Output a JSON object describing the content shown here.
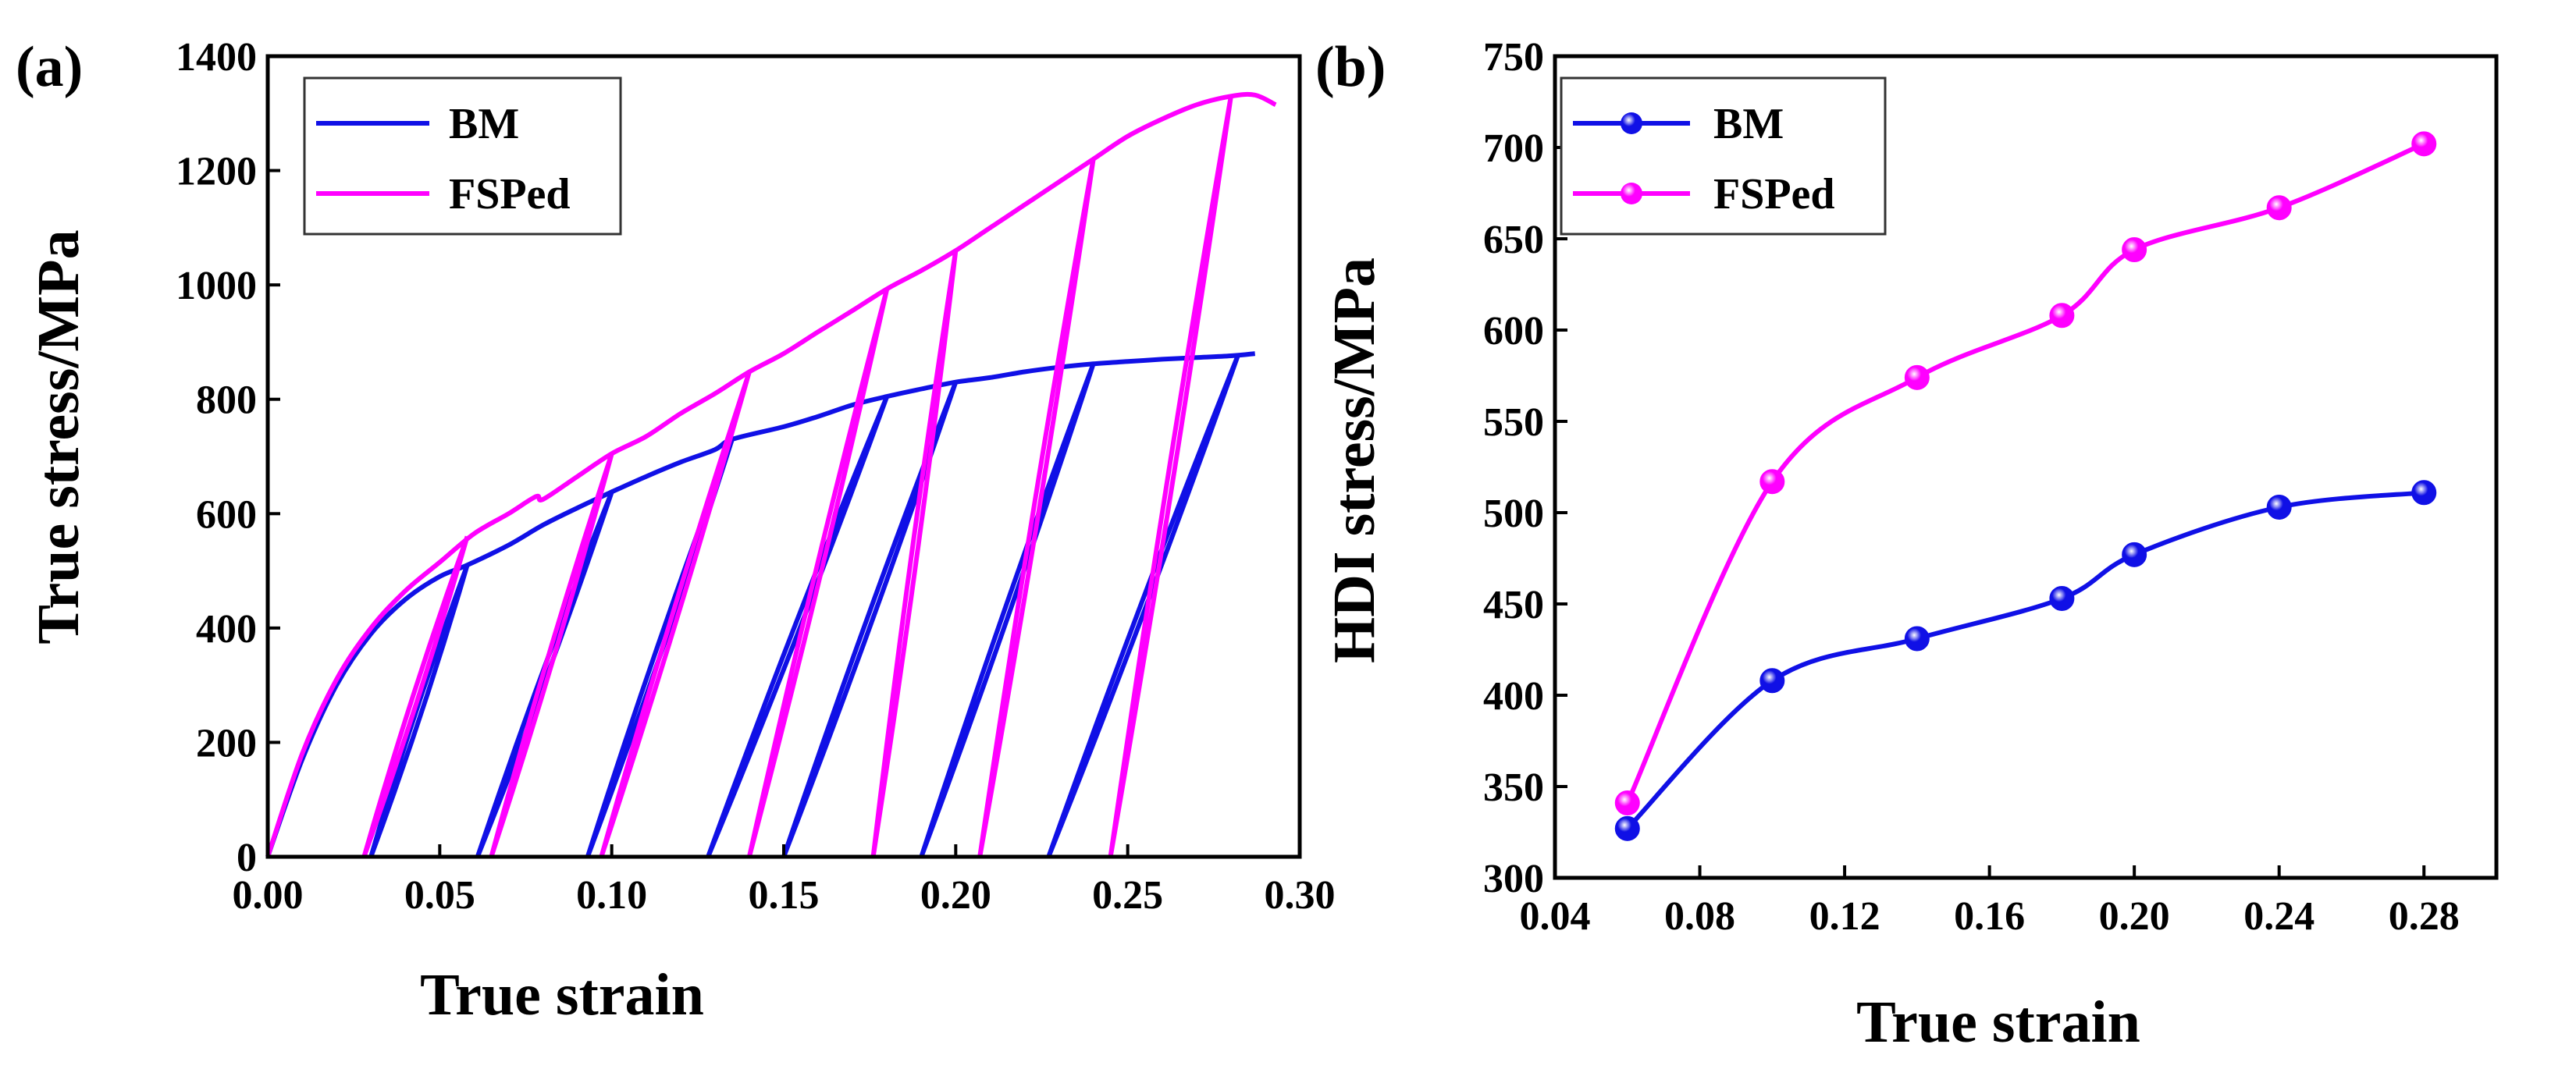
{
  "colors": {
    "bm": "#1010E6",
    "fsped": "#FF00FF",
    "axis": "#000000",
    "marker_highlight": "#FFFFFF"
  },
  "chart_data": [
    {
      "panel_label": "(a)",
      "type": "line",
      "title": "",
      "xlabel": "True strain",
      "ylabel": "True stress/MPa",
      "xlim": [
        0,
        0.3
      ],
      "ylim": [
        0,
        1400
      ],
      "xticks": [
        "0.00",
        "0.05",
        "0.10",
        "0.15",
        "0.20",
        "0.25",
        "0.30"
      ],
      "yticks": [
        "0",
        "200",
        "400",
        "600",
        "800",
        "1000",
        "1200",
        "1400"
      ],
      "legend_position": "top-left",
      "series": [
        {
          "name": "BM",
          "color_key": "bm",
          "monotonic_envelope": [
            [
              0,
              0
            ],
            [
              0.01,
              170
            ],
            [
              0.02,
              300
            ],
            [
              0.03,
              390
            ],
            [
              0.04,
              450
            ],
            [
              0.05,
              490
            ],
            [
              0.058,
              510
            ],
            [
              0.07,
              545
            ],
            [
              0.08,
              580
            ],
            [
              0.09,
              610
            ],
            [
              0.1,
              638
            ],
            [
              0.11,
              665
            ],
            [
              0.12,
              690
            ],
            [
              0.13,
              712
            ],
            [
              0.135,
              730
            ],
            [
              0.15,
              752
            ],
            [
              0.16,
              770
            ],
            [
              0.17,
              790
            ],
            [
              0.18,
              805
            ],
            [
              0.19,
              818
            ],
            [
              0.2,
              830
            ],
            [
              0.21,
              838
            ],
            [
              0.22,
              848
            ],
            [
              0.23,
              856
            ],
            [
              0.24,
              862
            ],
            [
              0.25,
              866
            ],
            [
              0.26,
              870
            ],
            [
              0.27,
              873
            ],
            [
              0.28,
              876
            ],
            [
              0.287,
              880
            ]
          ],
          "cycles": [
            {
              "peak_strain": 0.058,
              "peak_stress": 510,
              "zero_stress_strain": 0.03
            },
            {
              "peak_strain": 0.1,
              "peak_stress": 638,
              "zero_stress_strain": 0.061
            },
            {
              "peak_strain": 0.135,
              "peak_stress": 730,
              "zero_stress_strain": 0.093
            },
            {
              "peak_strain": 0.18,
              "peak_stress": 805,
              "zero_stress_strain": 0.128
            },
            {
              "peak_strain": 0.2,
              "peak_stress": 830,
              "zero_stress_strain": 0.15
            },
            {
              "peak_strain": 0.24,
              "peak_stress": 862,
              "zero_stress_strain": 0.19
            },
            {
              "peak_strain": 0.282,
              "peak_stress": 876,
              "zero_stress_strain": 0.227
            }
          ]
        },
        {
          "name": "FSPed",
          "color_key": "fsped",
          "monotonic_envelope": [
            [
              0,
              0
            ],
            [
              0.01,
              180
            ],
            [
              0.02,
              310
            ],
            [
              0.03,
              400
            ],
            [
              0.04,
              465
            ],
            [
              0.05,
              515
            ],
            [
              0.06,
              565
            ],
            [
              0.07,
              600
            ],
            [
              0.078,
              630
            ],
            [
              0.08,
              625
            ],
            [
              0.09,
              665
            ],
            [
              0.1,
              705
            ],
            [
              0.11,
              735
            ],
            [
              0.12,
              775
            ],
            [
              0.13,
              810
            ],
            [
              0.14,
              848
            ],
            [
              0.15,
              880
            ],
            [
              0.16,
              918
            ],
            [
              0.17,
              955
            ],
            [
              0.18,
              993
            ],
            [
              0.19,
              1025
            ],
            [
              0.2,
              1060
            ],
            [
              0.21,
              1100
            ],
            [
              0.22,
              1140
            ],
            [
              0.23,
              1180
            ],
            [
              0.24,
              1220
            ],
            [
              0.25,
              1260
            ],
            [
              0.26,
              1290
            ],
            [
              0.27,
              1315
            ],
            [
              0.28,
              1330
            ],
            [
              0.287,
              1332
            ],
            [
              0.293,
              1315
            ]
          ],
          "cycles": [
            {
              "peak_strain": 0.058,
              "peak_stress": 560,
              "zero_stress_strain": 0.028
            },
            {
              "peak_strain": 0.1,
              "peak_stress": 705,
              "zero_stress_strain": 0.065
            },
            {
              "peak_strain": 0.14,
              "peak_stress": 848,
              "zero_stress_strain": 0.097
            },
            {
              "peak_strain": 0.18,
              "peak_stress": 993,
              "zero_stress_strain": 0.14
            },
            {
              "peak_strain": 0.2,
              "peak_stress": 1060,
              "zero_stress_strain": 0.176
            },
            {
              "peak_strain": 0.24,
              "peak_stress": 1220,
              "zero_stress_strain": 0.207
            },
            {
              "peak_strain": 0.28,
              "peak_stress": 1330,
              "zero_stress_strain": 0.245
            }
          ]
        }
      ]
    },
    {
      "panel_label": "(b)",
      "type": "line",
      "title": "",
      "xlabel": "True strain",
      "ylabel": "HDI stress/MPa",
      "xlim": [
        0.04,
        0.3
      ],
      "ylim": [
        300,
        750
      ],
      "xticks": [
        "0.04",
        "0.08",
        "0.12",
        "0.16",
        "0.20",
        "0.24",
        "0.28"
      ],
      "yticks": [
        "300",
        "350",
        "400",
        "450",
        "500",
        "550",
        "600",
        "650",
        "700",
        "750"
      ],
      "legend_position": "top-left",
      "markers": true,
      "x": [
        0.06,
        0.1,
        0.14,
        0.18,
        0.2,
        0.24,
        0.28
      ],
      "series": [
        {
          "name": "BM",
          "color_key": "bm",
          "values": [
            327,
            408,
            431,
            453,
            477,
            503,
            511
          ]
        },
        {
          "name": "FSPed",
          "color_key": "fsped",
          "values": [
            341,
            517,
            574,
            608,
            644,
            667,
            702
          ]
        }
      ]
    }
  ]
}
